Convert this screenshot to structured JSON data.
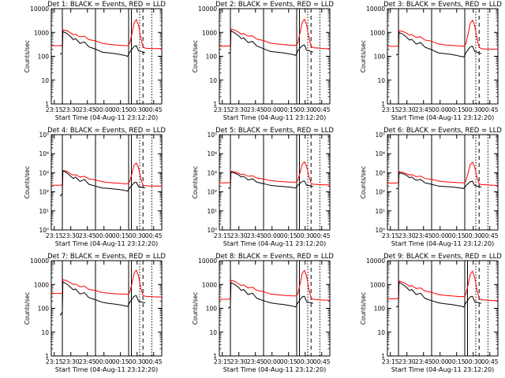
{
  "chart_data": {
    "type": "line",
    "x_tick_labels": [
      "23:15",
      "23:30",
      "23:45",
      "00:00",
      "00:15",
      "00:30",
      "00:45"
    ],
    "x_ticks_min_from_start": [
      2.67,
      17.67,
      32.67,
      47.67,
      62.67,
      77.67,
      92.67
    ],
    "x_range_min_from_start": [
      0,
      100
    ],
    "xlabel": "Start Time (04-Aug-11 23:12:20)",
    "ylabel": "Counts/sec",
    "y_scale": "log",
    "series_colors": {
      "events": "#000000",
      "lld": "#ff0000"
    },
    "time_min_from_start": [
      0,
      8,
      10,
      10.5,
      14,
      17,
      20,
      22,
      26,
      30,
      34,
      40,
      46,
      52,
      58,
      62,
      66,
      69,
      70,
      71,
      73,
      75,
      77,
      79,
      81,
      83,
      85,
      90,
      95,
      100
    ],
    "panels": [
      {
        "title": "Det 1: BLACK = Events, RED = LLD",
        "ylim": [
          1,
          10000
        ],
        "yticks": [
          "1",
          "10",
          "100",
          "1000",
          "10000"
        ],
        "events": [
          null,
          120,
          140,
          1100,
          900,
          700,
          500,
          550,
          350,
          400,
          250,
          200,
          150,
          140,
          130,
          120,
          110,
          100,
          120,
          150,
          200,
          260,
          280,
          170,
          160,
          150,
          140,
          null,
          null,
          null
        ],
        "lld": [
          280,
          280,
          300,
          1300,
          1200,
          1000,
          800,
          850,
          650,
          700,
          500,
          450,
          350,
          320,
          300,
          290,
          280,
          280,
          300,
          350,
          900,
          2500,
          3500,
          2000,
          600,
          250,
          220,
          210,
          210,
          210
        ],
        "vlines": [
          {
            "x": 10,
            "style": "solid"
          },
          {
            "x": 40,
            "style": "solid"
          },
          {
            "x": 70,
            "style": "solid"
          },
          {
            "x": 72.5,
            "style": "solid"
          },
          {
            "x": 80,
            "style": "dotted"
          },
          {
            "x": 83,
            "style": "dashed"
          },
          {
            "x": 91,
            "style": "dotted"
          }
        ]
      },
      {
        "title": "Det 2: BLACK = Events, RED = LLD",
        "ylim": [
          1,
          10000
        ],
        "yticks": [
          "1",
          "10",
          "100",
          "1000",
          "10000"
        ],
        "events": [
          null,
          130,
          150,
          1200,
          950,
          750,
          550,
          600,
          380,
          420,
          270,
          210,
          160,
          150,
          140,
          130,
          120,
          110,
          130,
          170,
          220,
          280,
          300,
          180,
          170,
          160,
          150,
          null,
          null,
          null
        ],
        "lld": [
          270,
          270,
          290,
          1400,
          1250,
          1050,
          850,
          900,
          700,
          720,
          520,
          460,
          360,
          330,
          310,
          300,
          290,
          290,
          310,
          360,
          950,
          2600,
          3600,
          2100,
          620,
          260,
          230,
          220,
          210,
          210
        ],
        "vlines": [
          {
            "x": 10,
            "style": "solid"
          },
          {
            "x": 40,
            "style": "solid"
          },
          {
            "x": 70,
            "style": "solid"
          },
          {
            "x": 72.5,
            "style": "solid"
          },
          {
            "x": 80,
            "style": "dotted"
          },
          {
            "x": 83,
            "style": "dashed"
          },
          {
            "x": 91,
            "style": "dotted"
          }
        ]
      },
      {
        "title": "Det 3: BLACK = Events, RED = LLD",
        "ylim": [
          1,
          10000
        ],
        "yticks": [
          "1",
          "10",
          "100",
          "1000",
          "10000"
        ],
        "events": [
          null,
          110,
          130,
          1000,
          850,
          650,
          480,
          520,
          330,
          380,
          240,
          190,
          140,
          130,
          120,
          110,
          100,
          95,
          110,
          140,
          190,
          250,
          270,
          160,
          150,
          140,
          130,
          null,
          null,
          null
        ],
        "lld": [
          260,
          260,
          280,
          1200,
          1100,
          950,
          780,
          820,
          620,
          660,
          480,
          430,
          330,
          300,
          290,
          280,
          270,
          270,
          290,
          340,
          850,
          2400,
          3300,
          1900,
          580,
          240,
          210,
          200,
          200,
          200
        ],
        "vlines": [
          {
            "x": 10,
            "style": "solid"
          },
          {
            "x": 40,
            "style": "solid"
          },
          {
            "x": 70,
            "style": "solid"
          },
          {
            "x": 80,
            "style": "dotted"
          },
          {
            "x": 83,
            "style": "dashed"
          },
          {
            "x": 91,
            "style": "dotted"
          }
        ]
      },
      {
        "title": "Det 4: BLACK = Events, RED = LLD",
        "ylim": [
          1,
          100000
        ],
        "yticks": [
          "10⁰",
          "10¹",
          "10²",
          "10³",
          "10⁴",
          "10⁵"
        ],
        "events": [
          null,
          60,
          80,
          1300,
          1000,
          700,
          500,
          600,
          350,
          450,
          250,
          200,
          160,
          150,
          140,
          130,
          120,
          110,
          130,
          160,
          220,
          300,
          320,
          190,
          180,
          170,
          160,
          null,
          null,
          null
        ],
        "lld": [
          220,
          220,
          240,
          1300,
          1200,
          900,
          750,
          800,
          600,
          650,
          480,
          420,
          340,
          310,
          290,
          280,
          270,
          270,
          290,
          350,
          900,
          2600,
          3200,
          1800,
          500,
          230,
          210,
          200,
          200,
          200
        ],
        "vlines": [
          {
            "x": 10,
            "style": "solid"
          },
          {
            "x": 40,
            "style": "solid"
          },
          {
            "x": 70,
            "style": "solid"
          },
          {
            "x": 72.5,
            "style": "solid"
          },
          {
            "x": 80,
            "style": "dotted"
          },
          {
            "x": 83,
            "style": "dashed"
          },
          {
            "x": 91,
            "style": "dotted"
          }
        ]
      },
      {
        "title": "Det 5: BLACK = Events, RED = LLD",
        "ylim": [
          1,
          100000
        ],
        "yticks": [
          "10⁰",
          "10¹",
          "10²",
          "10³",
          "10⁴",
          "10⁵"
        ],
        "events": [
          null,
          150,
          170,
          1100,
          950,
          800,
          600,
          650,
          420,
          480,
          320,
          270,
          220,
          200,
          190,
          180,
          170,
          160,
          180,
          220,
          280,
          350,
          370,
          220,
          210,
          200,
          190,
          null,
          null,
          null
        ],
        "lld": [
          300,
          300,
          320,
          1200,
          1100,
          950,
          800,
          850,
          650,
          700,
          520,
          470,
          390,
          360,
          340,
          330,
          320,
          320,
          340,
          390,
          1000,
          2800,
          3800,
          2200,
          650,
          280,
          250,
          240,
          230,
          230
        ],
        "vlines": [
          {
            "x": 10,
            "style": "solid"
          },
          {
            "x": 40,
            "style": "solid"
          },
          {
            "x": 70,
            "style": "solid"
          },
          {
            "x": 72.5,
            "style": "solid"
          },
          {
            "x": 80,
            "style": "dotted"
          },
          {
            "x": 83,
            "style": "dashed"
          },
          {
            "x": 91,
            "style": "dotted"
          }
        ]
      },
      {
        "title": "Det 6: BLACK = Events, RED = LLD",
        "ylim": [
          1,
          100000
        ],
        "yticks": [
          "10⁰",
          "10¹",
          "10²",
          "10³",
          "10⁴",
          "10⁵"
        ],
        "events": [
          null,
          140,
          160,
          1000,
          900,
          750,
          550,
          600,
          400,
          450,
          300,
          250,
          200,
          190,
          180,
          170,
          160,
          150,
          170,
          210,
          270,
          340,
          360,
          210,
          200,
          190,
          180,
          null,
          null,
          null
        ],
        "lld": [
          290,
          290,
          310,
          1150,
          1050,
          900,
          760,
          800,
          620,
          670,
          500,
          450,
          370,
          340,
          320,
          310,
          300,
          300,
          320,
          370,
          950,
          2700,
          3600,
          2000,
          600,
          270,
          240,
          230,
          220,
          220
        ],
        "vlines": [
          {
            "x": 10,
            "style": "solid"
          },
          {
            "x": 40,
            "style": "solid"
          },
          {
            "x": 70,
            "style": "solid"
          },
          {
            "x": 80,
            "style": "dotted"
          },
          {
            "x": 83,
            "style": "dashed"
          },
          {
            "x": 91,
            "style": "dotted"
          }
        ]
      },
      {
        "title": "Det 7: BLACK = Events, RED = LLD",
        "ylim": [
          1,
          10000
        ],
        "yticks": [
          "1",
          "10",
          "100",
          "1000",
          "10000"
        ],
        "events": [
          null,
          50,
          70,
          1300,
          1050,
          800,
          600,
          650,
          400,
          450,
          280,
          230,
          180,
          160,
          150,
          140,
          130,
          120,
          140,
          180,
          240,
          320,
          340,
          200,
          190,
          180,
          170,
          null,
          null,
          null
        ],
        "lld": [
          420,
          420,
          440,
          1600,
          1450,
          1200,
          1000,
          1050,
          800,
          850,
          620,
          560,
          460,
          430,
          410,
          400,
          390,
          390,
          410,
          470,
          1100,
          3000,
          4000,
          2300,
          700,
          350,
          320,
          310,
          300,
          300
        ],
        "vlines": [
          {
            "x": 10,
            "style": "solid"
          },
          {
            "x": 40,
            "style": "solid"
          },
          {
            "x": 70,
            "style": "solid"
          },
          {
            "x": 72.5,
            "style": "solid"
          },
          {
            "x": 80,
            "style": "dotted"
          },
          {
            "x": 83,
            "style": "dashed"
          },
          {
            "x": 91,
            "style": "dotted"
          }
        ]
      },
      {
        "title": "Det 8: BLACK = Events, RED = LLD",
        "ylim": [
          1,
          10000
        ],
        "yticks": [
          "1",
          "10",
          "100",
          "1000",
          "10000"
        ],
        "events": [
          null,
          100,
          120,
          1200,
          1000,
          780,
          560,
          620,
          380,
          430,
          260,
          210,
          170,
          155,
          145,
          135,
          125,
          115,
          135,
          170,
          230,
          300,
          320,
          190,
          180,
          170,
          160,
          null,
          null,
          null
        ],
        "lld": [
          240,
          240,
          260,
          1500,
          1350,
          1100,
          900,
          950,
          720,
          770,
          560,
          500,
          400,
          370,
          350,
          340,
          330,
          330,
          350,
          400,
          1000,
          2900,
          3900,
          2200,
          650,
          270,
          240,
          230,
          220,
          220
        ],
        "vlines": [
          {
            "x": 10,
            "style": "solid"
          },
          {
            "x": 40,
            "style": "solid"
          },
          {
            "x": 70,
            "style": "solid"
          },
          {
            "x": 72.5,
            "style": "solid"
          },
          {
            "x": 80,
            "style": "dotted"
          },
          {
            "x": 83,
            "style": "dashed"
          },
          {
            "x": 91,
            "style": "dotted"
          }
        ]
      },
      {
        "title": "Det 9: BLACK = Events, RED = LLD",
        "ylim": [
          1,
          10000
        ],
        "yticks": [
          "1",
          "10",
          "100",
          "1000",
          "10000"
        ],
        "events": [
          null,
          110,
          130,
          1250,
          1000,
          780,
          560,
          620,
          380,
          430,
          260,
          210,
          170,
          155,
          145,
          135,
          125,
          115,
          135,
          170,
          230,
          300,
          320,
          190,
          180,
          170,
          160,
          null,
          null,
          null
        ],
        "lld": [
          250,
          250,
          270,
          1400,
          1250,
          1050,
          850,
          900,
          680,
          720,
          530,
          470,
          380,
          350,
          330,
          320,
          310,
          310,
          330,
          380,
          950,
          2700,
          3600,
          2000,
          600,
          260,
          230,
          220,
          210,
          210
        ],
        "vlines": [
          {
            "x": 10,
            "style": "solid"
          },
          {
            "x": 40,
            "style": "solid"
          },
          {
            "x": 70,
            "style": "solid"
          },
          {
            "x": 72.5,
            "style": "solid"
          },
          {
            "x": 80,
            "style": "dotted"
          },
          {
            "x": 83,
            "style": "dashed"
          },
          {
            "x": 91,
            "style": "dotted"
          }
        ]
      }
    ]
  }
}
